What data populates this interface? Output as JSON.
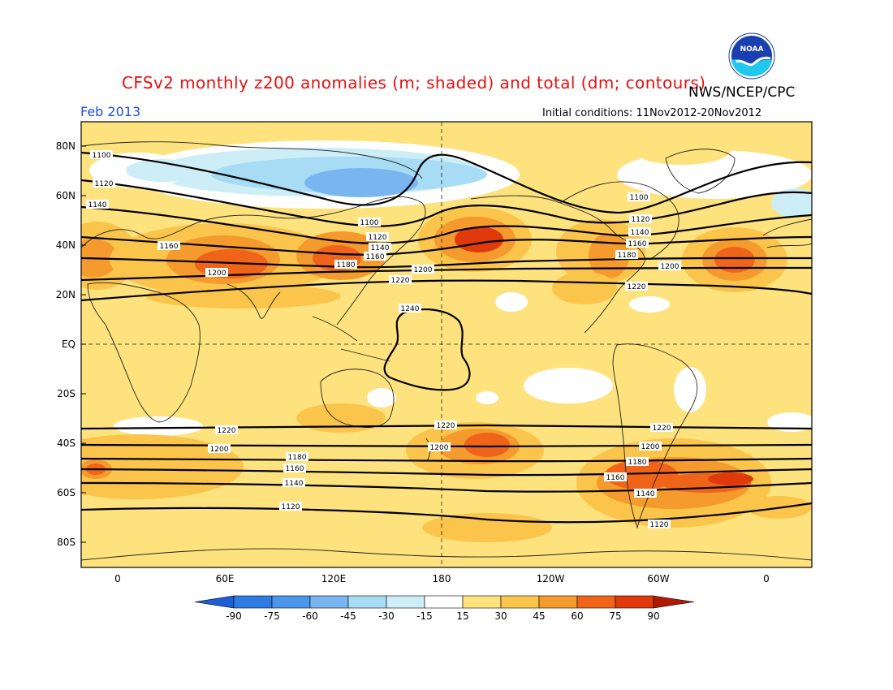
{
  "header": {
    "title": "CFSv2 monthly z200 anomalies (m; shaded) and total (dm; contours)",
    "org": "NWS/NCEP/CPC",
    "month": "Feb 2013",
    "initial_conditions": "Initial conditions: 11Nov2012-20Nov2012",
    "logo_text": "NOAA"
  },
  "map": {
    "lat_labels": [
      "80N",
      "60N",
      "40N",
      "20N",
      "EQ",
      "20S",
      "40S",
      "60S",
      "80S"
    ],
    "lon_labels": [
      "0",
      "60E",
      "120E",
      "180",
      "120W",
      "60W",
      "0"
    ],
    "contour_labels": [
      "1100",
      "1120",
      "1140",
      "1160",
      "1180",
      "1200",
      "1220",
      "1240"
    ]
  },
  "colorbar": {
    "labels": [
      "-90",
      "-75",
      "-60",
      "-45",
      "-30",
      "-15",
      "15",
      "30",
      "45",
      "60",
      "75",
      "90"
    ],
    "colors": [
      "#1c5fd6",
      "#2d7be3",
      "#4b95ea",
      "#79b5f0",
      "#a8dbf4",
      "#cdeef6",
      "#ffffff",
      "#fde27d",
      "#fbc44a",
      "#f59a2c",
      "#f0641a",
      "#e03a0c",
      "#b01a05"
    ]
  },
  "colors": {
    "title": "#e81010",
    "month": "#1e4fd8",
    "background_anomaly": "#fde27d"
  }
}
